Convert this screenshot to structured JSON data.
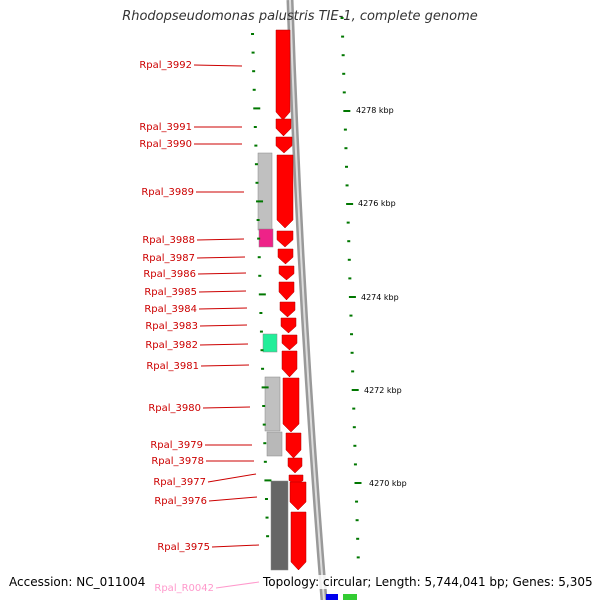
{
  "title": "Rhodopseudomonas palustris TIE-1, complete genome",
  "footer": {
    "accession": "Accession: NC_011004",
    "topology": "Topology: circular; Length: 5,744,041 bp; Genes: 5,305"
  },
  "colors": {
    "gene_red": "#ff0000",
    "gene_dark_red": "#b00000",
    "rna_pink": "#ff99cc",
    "pseudo_gray": "#c0c0c0",
    "dark_gray": "#666666",
    "magenta": "#ee2288",
    "green_feature": "#22ee99",
    "tick_green": "#007700",
    "backbone_gray": "#999999"
  },
  "scale_labels": [
    "4278 kbp",
    "4276 kbp",
    "4274 kbp",
    "4272 kbp",
    "4270 kbp"
  ],
  "gene_labels": [
    "Rpal_3992",
    "Rpal_3991",
    "Rpal_3990",
    "Rpal_3989",
    "Rpal_3988",
    "Rpal_3987",
    "Rpal_3986",
    "Rpal_3985",
    "Rpal_3984",
    "Rpal_3983",
    "Rpal_3982",
    "Rpal_3981",
    "Rpal_3980",
    "Rpal_3979",
    "Rpal_3978",
    "Rpal_3977",
    "Rpal_3976",
    "Rpal_3975",
    "Rpal_R0042"
  ]
}
